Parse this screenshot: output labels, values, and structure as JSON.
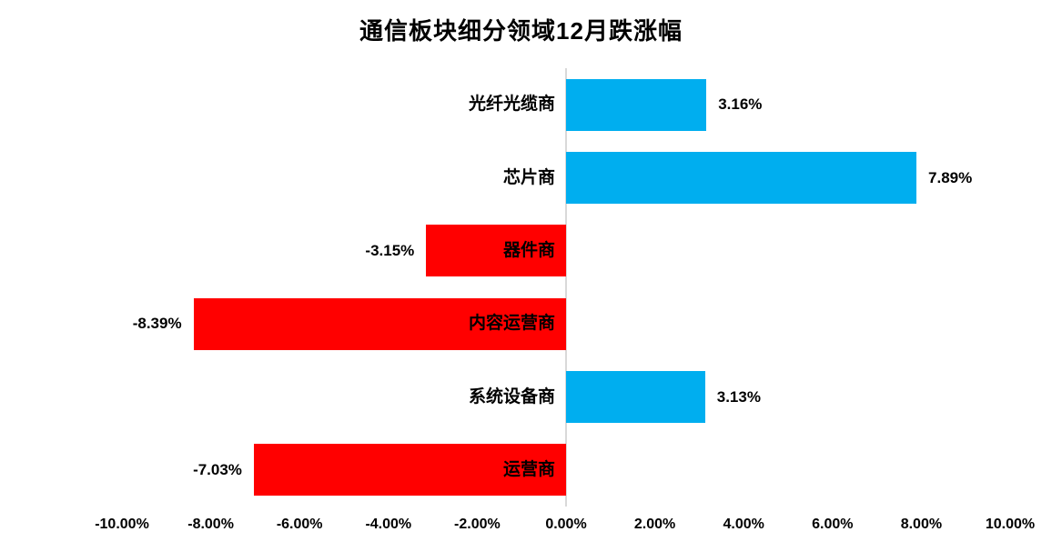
{
  "chart_data": {
    "type": "bar",
    "orientation": "horizontal",
    "title": "通信板块细分领域12月跌涨幅",
    "categories": [
      "光纤光缆商",
      "芯片商",
      "器件商",
      "内容运营商",
      "系统设备商",
      "运营商"
    ],
    "values": [
      3.16,
      7.89,
      -3.15,
      -8.39,
      3.13,
      -7.03
    ],
    "value_labels": [
      "3.16%",
      "7.89%",
      "-3.15%",
      "-8.39%",
      "3.13%",
      "-7.03%"
    ],
    "xlim": [
      -10,
      10
    ],
    "x_ticks": [
      {
        "label": "-10.00%",
        "value": -10
      },
      {
        "label": "-8.00%",
        "value": -8
      },
      {
        "label": "-6.00%",
        "value": -6
      },
      {
        "label": "-4.00%",
        "value": -4
      },
      {
        "label": "-2.00%",
        "value": -2
      },
      {
        "label": "0.00%",
        "value": 0
      },
      {
        "label": "2.00%",
        "value": 2
      },
      {
        "label": "4.00%",
        "value": 4
      },
      {
        "label": "6.00%",
        "value": 6
      },
      {
        "label": "8.00%",
        "value": 8
      },
      {
        "label": "10.00%",
        "value": 10
      }
    ],
    "grid": "off",
    "legend": "none",
    "colors": {
      "positive": "#00AEEF",
      "negative": "#FF0000",
      "axis_line": "#D9D9D9",
      "text": "#000000",
      "background": "#FFFFFF"
    }
  }
}
